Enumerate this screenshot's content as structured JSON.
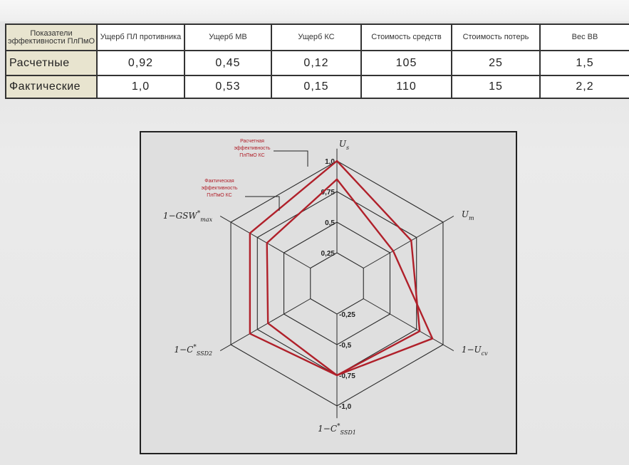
{
  "table": {
    "headers": [
      "Показатели эффективности ПлПмО",
      "Ущерб ПЛ противника",
      "Ущерб МВ",
      "Ущерб КС",
      "Стоимость средств",
      "Стоимость потерь",
      "Вес ВВ"
    ],
    "rows": [
      {
        "label": "Расчетные",
        "cells": [
          "0,92",
          "0,45",
          "0,12",
          "105",
          "25",
          "1,5"
        ]
      },
      {
        "label": "Фактические",
        "cells": [
          "1,0",
          "0,53",
          "0,15",
          "110",
          "15",
          "2,2"
        ]
      }
    ]
  },
  "chart_data": {
    "type": "radar",
    "axes": [
      {
        "label": "U",
        "sub": "s",
        "sup": ""
      },
      {
        "label": "U",
        "sub": "m",
        "sup": ""
      },
      {
        "label": "1−U",
        "sub": "cv",
        "sup": ""
      },
      {
        "label": "1−C",
        "sub": "SSD1",
        "sup": "*"
      },
      {
        "label": "1−C",
        "sub": "SSD2",
        "sup": "*"
      },
      {
        "label": "1−GSW",
        "sub": "max",
        "sup": "*"
      }
    ],
    "range": [
      0,
      1
    ],
    "ticks_up": [
      "0,25",
      "0,5",
      "0,75",
      "1,0"
    ],
    "ticks_down": [
      "0,25",
      "0,5",
      "0,75",
      "1,0"
    ],
    "grid": true,
    "series": [
      {
        "name": "Расчетная эффективность ПлПмО КС",
        "values": [
          1.0,
          0.7,
          0.78,
          0.75,
          0.82,
          0.82
        ],
        "color": "#b0202a"
      },
      {
        "name": "Фактическая эффективность ПлПмО КС",
        "values": [
          0.85,
          0.53,
          0.9,
          0.75,
          0.65,
          0.66
        ],
        "color": "#b0202a"
      }
    ]
  }
}
